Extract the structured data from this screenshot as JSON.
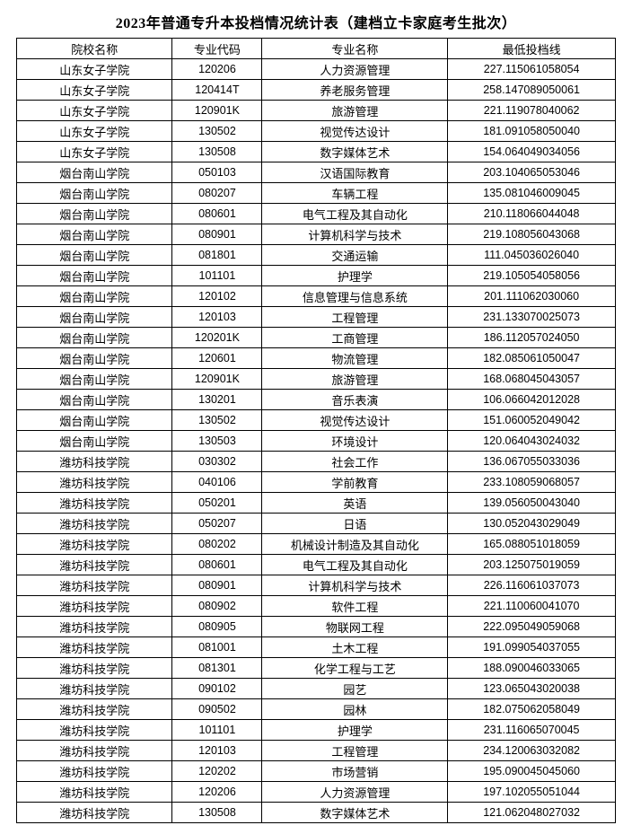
{
  "title": "2023年普通专升本投档情况统计表（建档立卡家庭考生批次）",
  "headers": {
    "school": "院校名称",
    "code": "专业代码",
    "major": "专业名称",
    "score": "最低投档线"
  },
  "rows": [
    {
      "school": "山东女子学院",
      "code": "120206",
      "major": "人力资源管理",
      "score": "227.115061058054"
    },
    {
      "school": "山东女子学院",
      "code": "120414T",
      "major": "养老服务管理",
      "score": "258.147089050061"
    },
    {
      "school": "山东女子学院",
      "code": "120901K",
      "major": "旅游管理",
      "score": "221.119078040062"
    },
    {
      "school": "山东女子学院",
      "code": "130502",
      "major": "视觉传达设计",
      "score": "181.091058050040"
    },
    {
      "school": "山东女子学院",
      "code": "130508",
      "major": "数字媒体艺术",
      "score": "154.064049034056"
    },
    {
      "school": "烟台南山学院",
      "code": "050103",
      "major": "汉语国际教育",
      "score": "203.104065053046"
    },
    {
      "school": "烟台南山学院",
      "code": "080207",
      "major": "车辆工程",
      "score": "135.081046009045"
    },
    {
      "school": "烟台南山学院",
      "code": "080601",
      "major": "电气工程及其自动化",
      "score": "210.118066044048"
    },
    {
      "school": "烟台南山学院",
      "code": "080901",
      "major": "计算机科学与技术",
      "score": "219.108056043068"
    },
    {
      "school": "烟台南山学院",
      "code": "081801",
      "major": "交通运输",
      "score": "111.045036026040"
    },
    {
      "school": "烟台南山学院",
      "code": "101101",
      "major": "护理学",
      "score": "219.105054058056"
    },
    {
      "school": "烟台南山学院",
      "code": "120102",
      "major": "信息管理与信息系统",
      "score": "201.111062030060"
    },
    {
      "school": "烟台南山学院",
      "code": "120103",
      "major": "工程管理",
      "score": "231.133070025073"
    },
    {
      "school": "烟台南山学院",
      "code": "120201K",
      "major": "工商管理",
      "score": "186.112057024050"
    },
    {
      "school": "烟台南山学院",
      "code": "120601",
      "major": "物流管理",
      "score": "182.085061050047"
    },
    {
      "school": "烟台南山学院",
      "code": "120901K",
      "major": "旅游管理",
      "score": "168.068045043057"
    },
    {
      "school": "烟台南山学院",
      "code": "130201",
      "major": "音乐表演",
      "score": "106.066042012028"
    },
    {
      "school": "烟台南山学院",
      "code": "130502",
      "major": "视觉传达设计",
      "score": "151.060052049042"
    },
    {
      "school": "烟台南山学院",
      "code": "130503",
      "major": "环境设计",
      "score": "120.064043024032"
    },
    {
      "school": "潍坊科技学院",
      "code": "030302",
      "major": "社会工作",
      "score": "136.067055033036"
    },
    {
      "school": "潍坊科技学院",
      "code": "040106",
      "major": "学前教育",
      "score": "233.108059068057"
    },
    {
      "school": "潍坊科技学院",
      "code": "050201",
      "major": "英语",
      "score": "139.056050043040"
    },
    {
      "school": "潍坊科技学院",
      "code": "050207",
      "major": "日语",
      "score": "130.052043029049"
    },
    {
      "school": "潍坊科技学院",
      "code": "080202",
      "major": "机械设计制造及其自动化",
      "score": "165.088051018059"
    },
    {
      "school": "潍坊科技学院",
      "code": "080601",
      "major": "电气工程及其自动化",
      "score": "203.125075019059"
    },
    {
      "school": "潍坊科技学院",
      "code": "080901",
      "major": "计算机科学与技术",
      "score": "226.116061037073"
    },
    {
      "school": "潍坊科技学院",
      "code": "080902",
      "major": "软件工程",
      "score": "221.110060041070"
    },
    {
      "school": "潍坊科技学院",
      "code": "080905",
      "major": "物联网工程",
      "score": "222.095049059068"
    },
    {
      "school": "潍坊科技学院",
      "code": "081001",
      "major": "土木工程",
      "score": "191.099054037055"
    },
    {
      "school": "潍坊科技学院",
      "code": "081301",
      "major": "化学工程与工艺",
      "score": "188.090046033065"
    },
    {
      "school": "潍坊科技学院",
      "code": "090102",
      "major": "园艺",
      "score": "123.065043020038"
    },
    {
      "school": "潍坊科技学院",
      "code": "090502",
      "major": "园林",
      "score": "182.075062058049"
    },
    {
      "school": "潍坊科技学院",
      "code": "101101",
      "major": "护理学",
      "score": "231.116065070045"
    },
    {
      "school": "潍坊科技学院",
      "code": "120103",
      "major": "工程管理",
      "score": "234.120063032082"
    },
    {
      "school": "潍坊科技学院",
      "code": "120202",
      "major": "市场营销",
      "score": "195.090045045060"
    },
    {
      "school": "潍坊科技学院",
      "code": "120206",
      "major": "人力资源管理",
      "score": "197.102055051044"
    },
    {
      "school": "潍坊科技学院",
      "code": "130508",
      "major": "数字媒体艺术",
      "score": "121.062048027032"
    }
  ]
}
